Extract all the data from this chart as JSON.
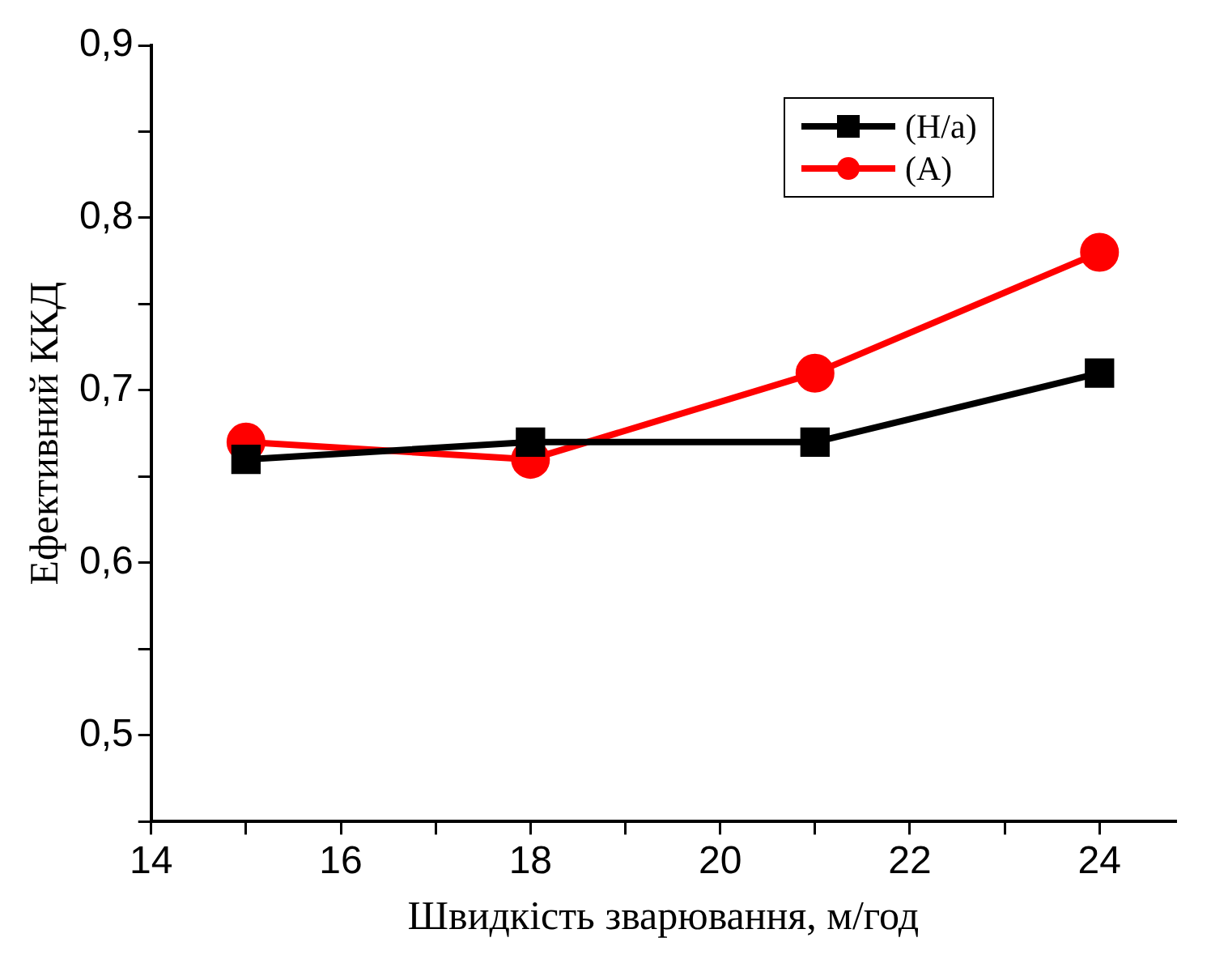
{
  "chart_data": {
    "type": "line",
    "xlabel": "Швидкість зварювання, м/год",
    "ylabel": "Ефективний ККД",
    "x": [
      15,
      18,
      21,
      24
    ],
    "series": [
      {
        "name": "(H/a)",
        "color": "#000000",
        "marker": "square",
        "values": [
          0.66,
          0.67,
          0.67,
          0.71
        ]
      },
      {
        "name": "(A)",
        "color": "#ff0000",
        "marker": "circle",
        "values": [
          0.67,
          0.66,
          0.71,
          0.78
        ]
      }
    ],
    "xlim": [
      14,
      24.8
    ],
    "xticks": [
      14,
      {
        "value": 15,
        "label": null
      },
      16,
      {
        "value": 17,
        "label": null
      },
      18,
      {
        "value": 19,
        "label": null
      },
      20,
      {
        "value": 21,
        "label": null
      },
      22,
      {
        "value": 23,
        "label": null
      },
      24
    ],
    "ylim": [
      0.45,
      0.9
    ],
    "yticks": [
      {
        "value": 0.45,
        "label": null
      },
      {
        "value": 0.5,
        "label": "0,5"
      },
      {
        "value": 0.55,
        "label": null
      },
      {
        "value": 0.6,
        "label": "0,6"
      },
      {
        "value": 0.65,
        "label": null
      },
      {
        "value": 0.7,
        "label": "0,7"
      },
      {
        "value": 0.75,
        "label": null
      },
      {
        "value": 0.8,
        "label": "0,8"
      },
      {
        "value": 0.85,
        "label": null
      },
      {
        "value": 0.9,
        "label": "0,9"
      }
    ],
    "grid": false,
    "legend": "top right"
  }
}
